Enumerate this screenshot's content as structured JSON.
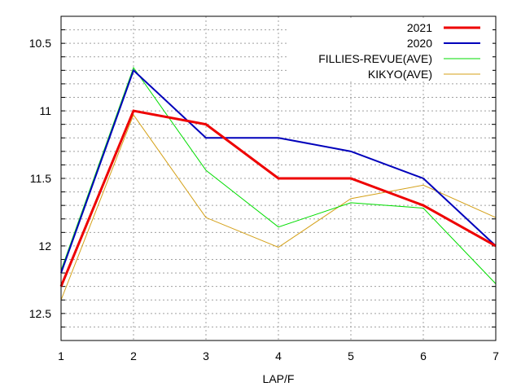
{
  "chart_data": {
    "type": "line",
    "title": "",
    "xlabel": "LAP/F",
    "ylabel": "",
    "x": [
      1,
      2,
      3,
      4,
      5,
      6,
      7
    ],
    "xlim": [
      1,
      7
    ],
    "ylim": [
      10.3,
      12.7
    ],
    "y_inverted": true,
    "y_ticks": [
      "10.5",
      "11",
      "11.5",
      "12",
      "12.5"
    ],
    "x_ticks": [
      "1",
      "2",
      "3",
      "4",
      "5",
      "6",
      "7"
    ],
    "grid": true,
    "legend_position": "top-right",
    "series": [
      {
        "name": "2021",
        "color": "#ee0000",
        "values": [
          12.3,
          11.0,
          11.1,
          11.5,
          11.5,
          11.7,
          12.0
        ]
      },
      {
        "name": "2020",
        "color": "#0000bb",
        "values": [
          12.2,
          10.7,
          11.2,
          11.2,
          11.3,
          11.5,
          12.0
        ]
      },
      {
        "name": "FILLIES-REVUE(AVE)",
        "color": "#00dd00",
        "values": [
          12.18,
          10.68,
          11.44,
          11.86,
          11.68,
          11.72,
          12.28
        ]
      },
      {
        "name": "KIKYO(AVE)",
        "color": "#d4a017",
        "values": [
          12.4,
          11.03,
          11.79,
          12.01,
          11.65,
          11.55,
          11.79
        ]
      }
    ]
  }
}
